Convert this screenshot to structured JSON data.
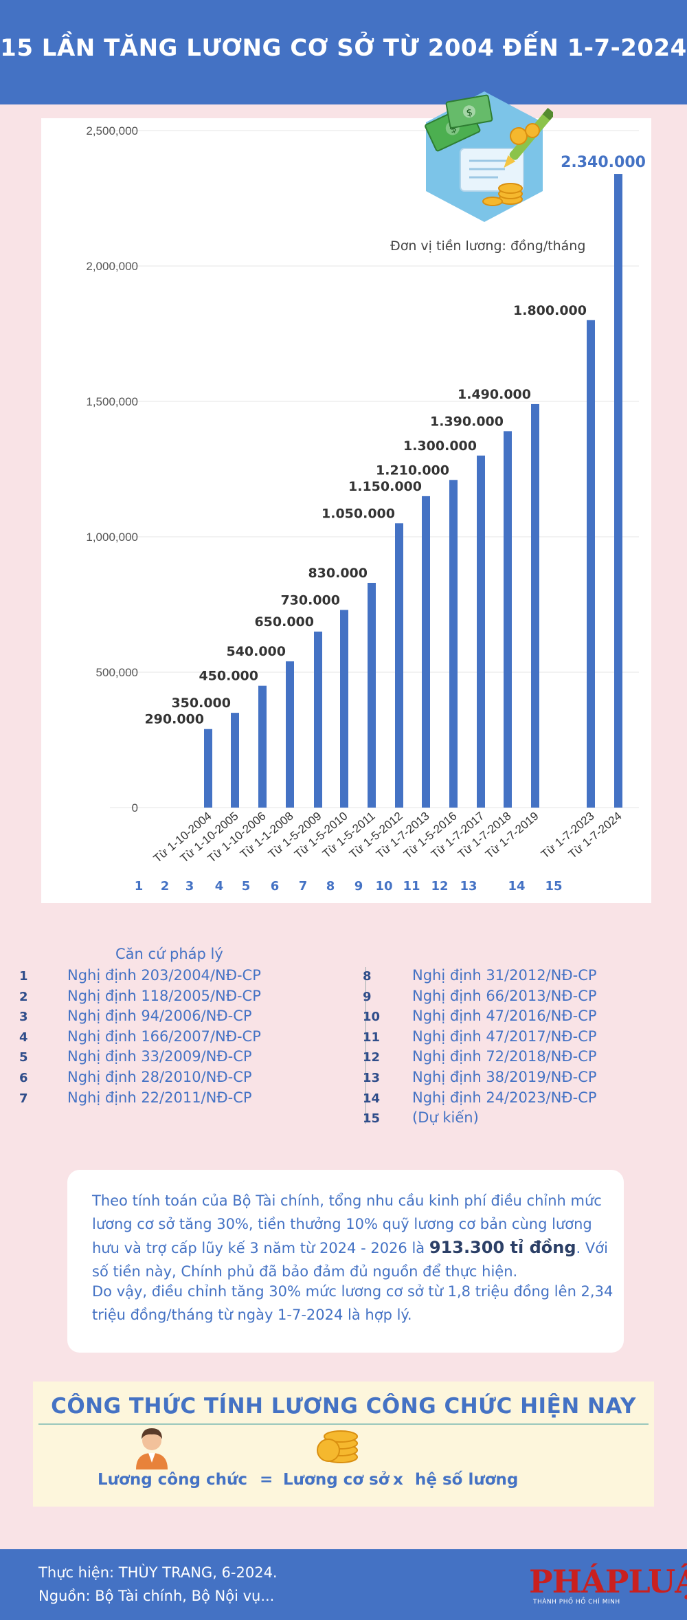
{
  "header": {
    "title": "15 LẦN TĂNG LƯƠNG CƠ SỞ TỪ 2004 ĐẾN 1-7-2024"
  },
  "chart_data": {
    "type": "bar",
    "unit_note": "Đơn vị tiền lương: đồng/tháng",
    "ylim": [
      0,
      2500000
    ],
    "y_ticks": [
      "0",
      "500,000",
      "1,000,000",
      "1,500,000",
      "2,000,000",
      "2,500,000"
    ],
    "categories": [
      "Từ 1-10-2004",
      "Từ 1-10-2005",
      "Từ 1-10-2006",
      "Từ 1-1-2008",
      "Từ 1-5-2009",
      "Từ 1-5-2010",
      "Từ 1-5-2011",
      "Từ 1-5-2012",
      "Từ 1-7-2013",
      "Từ 1-5-2016",
      "Từ 1-7-2017",
      "Từ 1-7-2018",
      "Từ 1-7-2019",
      "Từ 1-7-2023",
      "Từ 1-7-2024"
    ],
    "values": [
      290000,
      350000,
      450000,
      540000,
      650000,
      730000,
      830000,
      1050000,
      1150000,
      1210000,
      1300000,
      1390000,
      1490000,
      1800000,
      2340000
    ],
    "value_labels": [
      "290.000",
      "350.000",
      "450.000",
      "540.000",
      "650.000",
      "730.000",
      "830.000",
      "1.050.000",
      "1.150.000",
      "1.210.000",
      "1.300.000",
      "1.390.000",
      "1.490.000",
      "1.800.000",
      "2.340.000"
    ],
    "index_labels": [
      "1",
      "2",
      "3",
      "4",
      "5",
      "6",
      "7",
      "8",
      "9",
      "10",
      "11",
      "12",
      "13",
      "14",
      "15"
    ],
    "bar_color": "#4472c4",
    "highlight_color": "#4472c4"
  },
  "legal": {
    "title": "Căn cứ pháp lý",
    "left": [
      {
        "num": "1",
        "text": "Nghị định 203/2004/NĐ-CP"
      },
      {
        "num": "2",
        "text": "Nghị định 118/2005/NĐ-CP"
      },
      {
        "num": "3",
        "text": "Nghị định 94/2006/NĐ-CP"
      },
      {
        "num": "4",
        "text": "Nghị định 166/2007/NĐ-CP"
      },
      {
        "num": "5",
        "text": "Nghị định 33/2009/NĐ-CP"
      },
      {
        "num": "6",
        "text": "Nghị định 28/2010/NĐ-CP"
      },
      {
        "num": "7",
        "text": "Nghị định 22/2011/NĐ-CP"
      }
    ],
    "right": [
      {
        "num": "8",
        "text": "Nghị định 31/2012/NĐ-CP"
      },
      {
        "num": "9",
        "text": "Nghị định 66/2013/NĐ-CP"
      },
      {
        "num": "10",
        "text": "Nghị định 47/2016/NĐ-CP"
      },
      {
        "num": "11",
        "text": "Nghị định 47/2017/NĐ-CP"
      },
      {
        "num": "12",
        "text": "Nghị định 72/2018/NĐ-CP"
      },
      {
        "num": "13",
        "text": "Nghị định 38/2019/NĐ-CP"
      },
      {
        "num": "14",
        "text": "Nghị định 24/2023/NĐ-CP"
      },
      {
        "num": "15",
        "text": "(Dự kiến)"
      }
    ]
  },
  "note": {
    "p1_before": "Theo tính toán của Bộ Tài chính, tổng nhu cầu kinh phí điều chỉnh mức lương cơ sở tăng 30%, tiền thưởng 10% quỹ lương cơ bản cùng lương hưu và trợ cấp lũy kế 3 năm từ 2024 - 2026 là",
    "p1_bold": "913.300 tỉ đồng",
    "p1_after": ". Với số tiền này, Chính phủ đã bảo đảm đủ nguồn để thực hiện.",
    "p2": "Do vậy, điều chỉnh tăng 30% mức lương cơ sở từ 1,8 triệu đồng lên 2,34 triệu đồng/tháng từ ngày 1-7-2024 là hợp lý."
  },
  "formula": {
    "title": "CÔNG THỨC TÍNH LƯƠNG CÔNG CHỨC HIỆN NAY",
    "left": "Lương công chức",
    "equals": "=",
    "term1": "Lương cơ sở",
    "times": "x",
    "term2": "hệ số lương"
  },
  "footer": {
    "line1": "Thực hiện:  THÙY TRANG, 6-2024.",
    "line2": "Nguồn: Bộ Tài chính, Bộ Nội vụ...",
    "logo": "PHÁPLUẬT",
    "logo_sub": "THÀNH PHỐ HỒ CHÍ MINH"
  }
}
